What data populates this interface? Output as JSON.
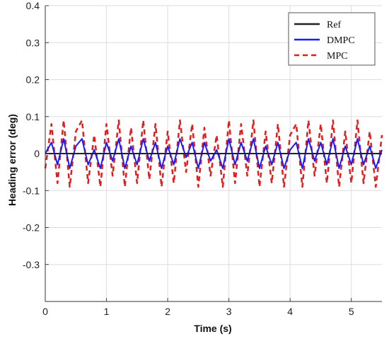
{
  "chart_data": {
    "type": "line",
    "title": "",
    "xlabel": "Time (s)",
    "ylabel": "Heading error (deg)",
    "xlim": [
      0,
      5.5
    ],
    "ylim": [
      -0.4,
      0.4
    ],
    "xticks": [
      0,
      1,
      2,
      3,
      4,
      5
    ],
    "xtick_labels": [
      "0",
      "1",
      "2",
      "3",
      "4",
      "5"
    ],
    "yticks": [
      0.4,
      0.3,
      0.2,
      0.1,
      0,
      -0.1,
      -0.2,
      -0.3
    ],
    "ytick_labels": [
      "0.4",
      "0.3",
      "0.2",
      "0.1",
      "0",
      "-0.1",
      "-0.2",
      "-0.3"
    ],
    "grid": true,
    "legend_position": "top-right",
    "series": [
      {
        "name": "Ref",
        "color": "#222222",
        "style": "solid",
        "x": [
          0,
          5.5
        ],
        "y": [
          0,
          0
        ]
      },
      {
        "name": "DMPC",
        "color": "#1a1aff",
        "style": "solid",
        "x": [
          0.0,
          0.1,
          0.2,
          0.3,
          0.4,
          0.5,
          0.6,
          0.7,
          0.8,
          0.9,
          1.0,
          1.1,
          1.2,
          1.3,
          1.4,
          1.5,
          1.6,
          1.7,
          1.8,
          1.9,
          2.0,
          2.1,
          2.2,
          2.3,
          2.4,
          2.5,
          2.6,
          2.7,
          2.8,
          2.9,
          3.0,
          3.1,
          3.2,
          3.3,
          3.4,
          3.5,
          3.6,
          3.7,
          3.8,
          3.9,
          4.0,
          4.1,
          4.2,
          4.3,
          4.4,
          4.5,
          4.6,
          4.7,
          4.8,
          4.9,
          5.0,
          5.1,
          5.2,
          5.3,
          5.4,
          5.5
        ],
        "y": [
          0.0,
          0.03,
          -0.03,
          0.04,
          -0.04,
          0.02,
          0.04,
          -0.03,
          0.01,
          -0.04,
          0.03,
          -0.02,
          0.04,
          -0.04,
          0.02,
          -0.03,
          0.04,
          -0.02,
          0.03,
          -0.04,
          0.02,
          -0.03,
          0.04,
          -0.01,
          0.03,
          -0.04,
          0.03,
          -0.02,
          0.01,
          -0.04,
          0.04,
          -0.03,
          0.03,
          -0.02,
          0.04,
          -0.04,
          0.02,
          -0.03,
          0.03,
          -0.04,
          0.01,
          0.03,
          -0.04,
          0.04,
          -0.02,
          0.03,
          -0.03,
          0.04,
          -0.04,
          0.02,
          -0.03,
          0.04,
          -0.03,
          0.02,
          -0.04,
          0.01
        ]
      },
      {
        "name": "MPC",
        "color": "#e01e1e",
        "style": "dashed",
        "x": [
          0.0,
          0.1,
          0.2,
          0.3,
          0.4,
          0.5,
          0.6,
          0.7,
          0.8,
          0.9,
          1.0,
          1.1,
          1.2,
          1.3,
          1.4,
          1.5,
          1.6,
          1.7,
          1.8,
          1.9,
          2.0,
          2.1,
          2.2,
          2.3,
          2.4,
          2.5,
          2.6,
          2.7,
          2.8,
          2.9,
          3.0,
          3.1,
          3.2,
          3.3,
          3.4,
          3.5,
          3.6,
          3.7,
          3.8,
          3.9,
          4.0,
          4.1,
          4.2,
          4.3,
          4.4,
          4.5,
          4.6,
          4.7,
          4.8,
          4.9,
          5.0,
          5.1,
          5.2,
          5.3,
          5.4,
          5.5
        ],
        "y": [
          -0.04,
          0.08,
          -0.08,
          0.09,
          -0.09,
          0.06,
          0.09,
          -0.08,
          0.05,
          -0.09,
          0.08,
          -0.06,
          0.09,
          -0.09,
          0.07,
          -0.08,
          0.09,
          -0.07,
          0.08,
          -0.09,
          0.06,
          -0.08,
          0.09,
          -0.05,
          0.08,
          -0.09,
          0.07,
          -0.06,
          0.05,
          -0.09,
          0.09,
          -0.08,
          0.08,
          -0.06,
          0.09,
          -0.09,
          0.06,
          -0.08,
          0.08,
          -0.09,
          0.05,
          0.08,
          -0.09,
          0.09,
          -0.06,
          0.08,
          -0.08,
          0.09,
          -0.09,
          0.06,
          -0.08,
          0.09,
          -0.08,
          0.06,
          -0.09,
          0.05
        ]
      }
    ]
  }
}
